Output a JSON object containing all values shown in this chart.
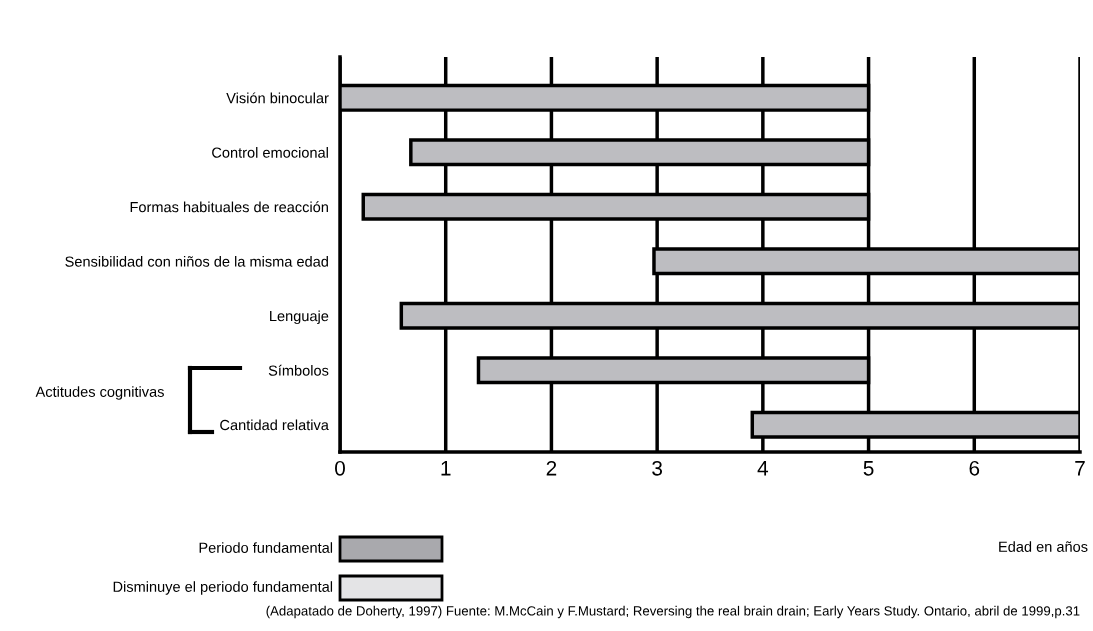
{
  "chart_data": {
    "type": "bar",
    "orientation": "horizontal",
    "categories": [
      "Visión binocular",
      "Control emocional",
      "Formas habituales de reacción",
      "Sensibilidad con niños de la misma edad",
      "Lenguaje",
      "Símbolos",
      "Cantidad relativa"
    ],
    "base": [
      0,
      0.67,
      0.22,
      2.97,
      0.58,
      1.31,
      3.9
    ],
    "values": [
      5,
      4.33,
      4.78,
      4.03,
      6.42,
      3.69,
      3.1
    ],
    "color": "#bdbdc1",
    "xlim": [
      0,
      7
    ],
    "xticks": [
      0,
      1,
      2,
      3,
      4,
      5,
      6,
      7
    ],
    "grid": "x",
    "annotations": [
      "Edad en años",
      "Actitudes cognitivas",
      "Periodo fundamental",
      "Disminuye el periodo fundamental",
      "(Adapatado de Doherty, 1997) Fuente: M.McCain y F.Mustard; Reversing the real brain drain; Early Years Study. Ontario, abril de 1999,p.31"
    ]
  }
}
